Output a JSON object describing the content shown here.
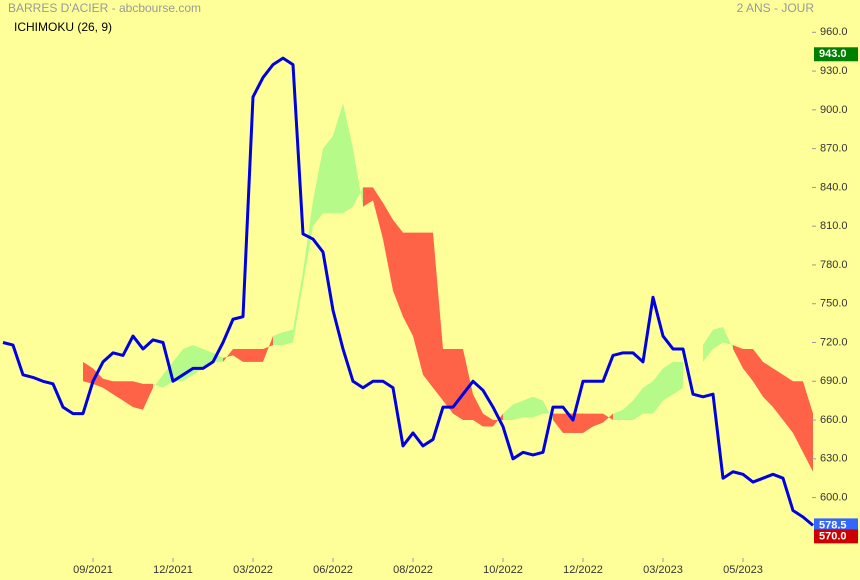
{
  "chart_data": {
    "type": "ichimoku",
    "title": "BARRES D'ACIER - abcbourse.com",
    "period": "2 ANS - JOUR",
    "indicator": "ICHIMOKU (26, 9)",
    "categories": [
      null,
      null,
      null,
      null,
      null,
      null,
      null,
      null,
      null,
      "09/2021",
      null,
      null,
      null,
      null,
      null,
      null,
      null,
      "12/2021",
      null,
      null,
      null,
      null,
      null,
      null,
      null,
      "03/2022",
      null,
      null,
      null,
      null,
      null,
      null,
      null,
      "06/2022",
      null,
      null,
      null,
      null,
      null,
      null,
      null,
      "08/2022",
      null,
      null,
      null,
      null,
      null,
      null,
      null,
      null,
      "10/2022",
      null,
      null,
      null,
      null,
      null,
      null,
      null,
      "12/2022",
      null,
      null,
      null,
      null,
      null,
      null,
      null,
      "03/2023",
      null,
      null,
      null,
      null,
      null,
      null,
      null,
      "05/2023",
      null,
      null,
      null,
      null,
      null,
      null,
      null
    ],
    "price": {
      "color": "#0000e0",
      "values": [
        720,
        718,
        695,
        693,
        690,
        688,
        670,
        665,
        665,
        690,
        705,
        712,
        710,
        725,
        715,
        722,
        720,
        690,
        695,
        700,
        700,
        705,
        720,
        738,
        740,
        910,
        925,
        935,
        940,
        935,
        804,
        800,
        790,
        745,
        715,
        690,
        685,
        690,
        690,
        685,
        640,
        650,
        640,
        645,
        670,
        670,
        680,
        690,
        683,
        670,
        655,
        630,
        635,
        633,
        635,
        670,
        670,
        660,
        690,
        690,
        690,
        710,
        712,
        712,
        705,
        755,
        725,
        715,
        715,
        680,
        678,
        680,
        615,
        620,
        618,
        612,
        615,
        618,
        615,
        590,
        585,
        578.5
      ]
    },
    "span_a": [
      null,
      null,
      null,
      null,
      null,
      null,
      null,
      null,
      690,
      688,
      685,
      680,
      675,
      670,
      668,
      685,
      695,
      705,
      715,
      718,
      715,
      712,
      708,
      710,
      705,
      705,
      705,
      725,
      728,
      730,
      775,
      830,
      870,
      880,
      905,
      870,
      825,
      830,
      800,
      760,
      740,
      725,
      695,
      685,
      675,
      665,
      660,
      660,
      655,
      655,
      665,
      672,
      675,
      678,
      675,
      660,
      650,
      650,
      650,
      655,
      658,
      665,
      668,
      675,
      685,
      690,
      700,
      705,
      705,
      null,
      718,
      730,
      732,
      715,
      700,
      690,
      678,
      670,
      660,
      650,
      635,
      620
    ],
    "span_b": [
      null,
      null,
      null,
      null,
      null,
      null,
      null,
      null,
      705,
      700,
      692,
      690,
      690,
      690,
      688,
      688,
      685,
      690,
      690,
      695,
      700,
      705,
      705,
      715,
      715,
      715,
      715,
      718,
      718,
      720,
      765,
      810,
      820,
      820,
      820,
      825,
      840,
      840,
      828,
      815,
      805,
      805,
      805,
      805,
      715,
      715,
      715,
      680,
      665,
      660,
      660,
      660,
      662,
      662,
      665,
      665,
      665,
      665,
      665,
      665,
      665,
      660,
      660,
      660,
      665,
      665,
      675,
      680,
      685,
      null,
      705,
      715,
      720,
      718,
      715,
      715,
      705,
      700,
      695,
      690,
      690,
      665
    ],
    "cloud_up_color": "#b6fb8a",
    "cloud_down_color": "#ff6347",
    "ylim": [
      561,
      985
    ],
    "yticks": [
      {
        "value": 600,
        "label": "600.0"
      },
      {
        "value": 630,
        "label": "630.0"
      },
      {
        "value": 660,
        "label": "660.0"
      },
      {
        "value": 690,
        "label": "690.0"
      },
      {
        "value": 720,
        "label": "720.0"
      },
      {
        "value": 750,
        "label": "750.0"
      },
      {
        "value": 780,
        "label": "780.0"
      },
      {
        "value": 810,
        "label": "810.0"
      },
      {
        "value": 840,
        "label": "840.0"
      },
      {
        "value": 870,
        "label": "870.0"
      },
      {
        "value": 900,
        "label": "900.0"
      },
      {
        "value": 930,
        "label": "930.0"
      },
      {
        "value": 960,
        "label": "960.0"
      }
    ],
    "grid": false,
    "price_badges": [
      {
        "value": 943,
        "label": "943.0",
        "color": "#008000"
      },
      {
        "value": 578.5,
        "label": "578.5",
        "color": "#3366ff"
      },
      {
        "value": 570,
        "label": "570.0",
        "color": "#cc0000"
      }
    ]
  }
}
